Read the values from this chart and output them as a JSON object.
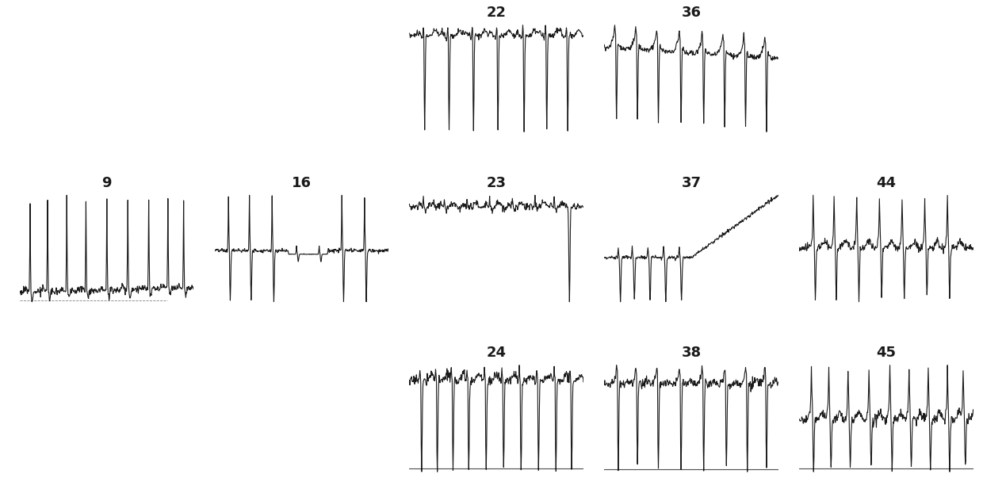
{
  "panels": [
    {
      "label": "22",
      "row": 0,
      "col": 2
    },
    {
      "label": "36",
      "row": 0,
      "col": 3
    },
    {
      "label": "9",
      "row": 1,
      "col": 0
    },
    {
      "label": "16",
      "row": 1,
      "col": 1
    },
    {
      "label": "23",
      "row": 1,
      "col": 2
    },
    {
      "label": "37",
      "row": 1,
      "col": 3
    },
    {
      "label": "44",
      "row": 1,
      "col": 4
    },
    {
      "label": "24",
      "row": 2,
      "col": 2
    },
    {
      "label": "38",
      "row": 2,
      "col": 3
    },
    {
      "label": "45",
      "row": 2,
      "col": 4
    }
  ],
  "bg_color": "#ffffff",
  "line_color": "#1a1a1a",
  "label_fontsize": 13,
  "label_fontweight": "bold",
  "lw": 0.8
}
